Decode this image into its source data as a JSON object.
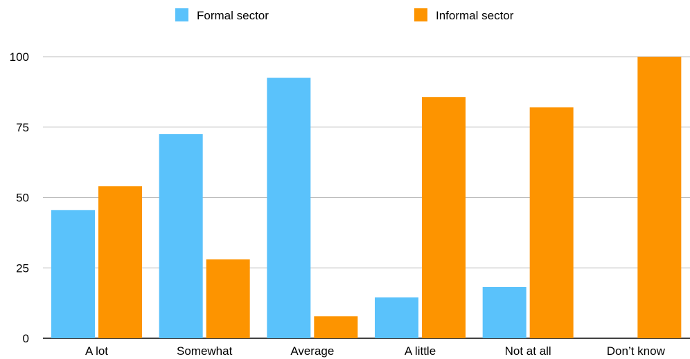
{
  "chart_data": {
    "type": "bar",
    "categories": [
      "A lot",
      "Somewhat",
      "Average",
      "A little",
      "Not at all",
      "Don’t know"
    ],
    "series": [
      {
        "name": "Formal sector",
        "color": "#5ac2fb",
        "values": [
          45.5,
          72.5,
          92.5,
          14.5,
          18.2,
          0
        ]
      },
      {
        "name": "Informal sector",
        "color": "#fd9400",
        "values": [
          54,
          28,
          7.8,
          85.7,
          82,
          100
        ]
      }
    ],
    "ylim": [
      0,
      100
    ],
    "yticks": [
      0,
      25,
      50,
      75,
      100
    ],
    "grid": true,
    "legend": "top-center"
  }
}
